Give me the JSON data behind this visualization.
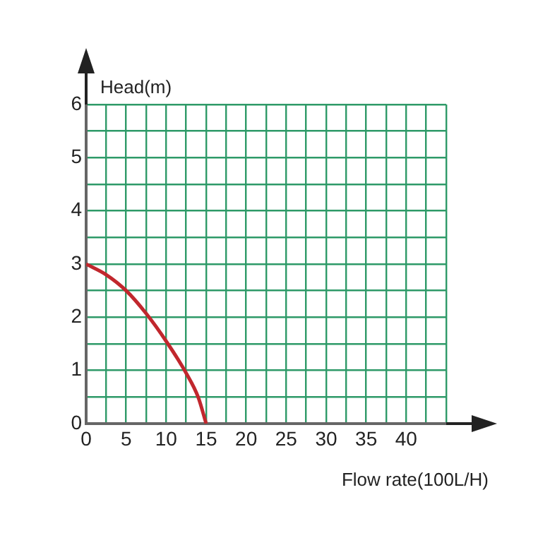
{
  "chart_data": {
    "type": "line",
    "xlabel": "Flow rate(100L/H)",
    "ylabel": "Head(m)",
    "x": [
      0,
      2.5,
      5,
      7.5,
      10,
      12.5,
      14,
      15
    ],
    "series": [
      {
        "color": "#c1272d",
        "values": [
          3,
          2.8,
          2.5,
          2.07,
          1.55,
          0.95,
          0.5,
          0
        ]
      }
    ],
    "xlim": [
      0,
      45
    ],
    "xticks": [
      0,
      {
        "value": 2.5,
        "label": null
      },
      5,
      {
        "value": 7.5,
        "label": null
      },
      10,
      {
        "value": 12.5,
        "label": null
      },
      15,
      {
        "value": 17.5,
        "label": null
      },
      20,
      {
        "value": 22.5,
        "label": null
      },
      25,
      {
        "value": 27.5,
        "label": null
      },
      30,
      {
        "value": 32.5,
        "label": null
      },
      35,
      {
        "value": 37.5,
        "label": null
      },
      40,
      {
        "value": 42.5,
        "label": null
      },
      {
        "value": 45,
        "label": null
      }
    ],
    "ylim": [
      0,
      6
    ],
    "yticks": [
      0,
      {
        "value": 0.5,
        "label": null
      },
      1,
      {
        "value": 1.5,
        "label": null
      },
      2,
      {
        "value": 2.5,
        "label": null
      },
      3,
      {
        "value": 3.5,
        "label": null
      },
      4,
      {
        "value": 4.5,
        "label": null
      },
      5,
      {
        "value": 5.5,
        "label": null
      },
      6
    ],
    "grid": true,
    "legend": false,
    "marker": "none",
    "line_style": "solid"
  }
}
